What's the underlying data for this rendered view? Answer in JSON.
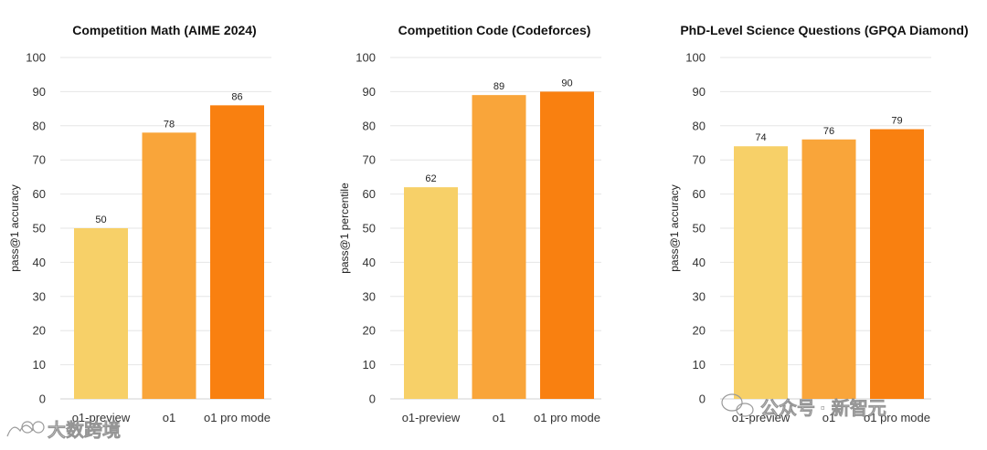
{
  "chart_data": [
    {
      "type": "bar",
      "title": "Competition Math (AIME 2024)",
      "ylabel": "pass@1 accuracy",
      "xlabel": "",
      "ylim": [
        0,
        100
      ],
      "yticks": [
        0,
        10,
        20,
        30,
        40,
        50,
        60,
        70,
        80,
        90,
        100
      ],
      "categories": [
        "o1-preview",
        "o1",
        "o1 pro mode"
      ],
      "values": [
        50,
        78,
        86
      ],
      "colors": [
        "#f7d068",
        "#f9a53a",
        "#f98010"
      ],
      "grid": true
    },
    {
      "type": "bar",
      "title": "Competition Code (Codeforces)",
      "ylabel": "pass@1 percentile",
      "xlabel": "",
      "ylim": [
        0,
        100
      ],
      "yticks": [
        0,
        10,
        20,
        30,
        40,
        50,
        60,
        70,
        80,
        90,
        100
      ],
      "categories": [
        "o1-preview",
        "o1",
        "o1 pro mode"
      ],
      "values": [
        62,
        89,
        90
      ],
      "colors": [
        "#f7d068",
        "#f9a53a",
        "#f98010"
      ],
      "grid": true
    },
    {
      "type": "bar",
      "title": "PhD-Level Science Questions (GPQA Diamond)",
      "ylabel": "pass@1 accuracy",
      "xlabel": "",
      "ylim": [
        0,
        100
      ],
      "yticks": [
        0,
        10,
        20,
        30,
        40,
        50,
        60,
        70,
        80,
        90,
        100
      ],
      "categories": [
        "o1-preview",
        "o1",
        "o1 pro mode"
      ],
      "values": [
        74,
        76,
        79
      ],
      "colors": [
        "#f7d068",
        "#f9a53a",
        "#f98010"
      ],
      "grid": true
    }
  ],
  "watermarks": {
    "left": "大数跨境",
    "right": "公众号 · 新智元"
  }
}
